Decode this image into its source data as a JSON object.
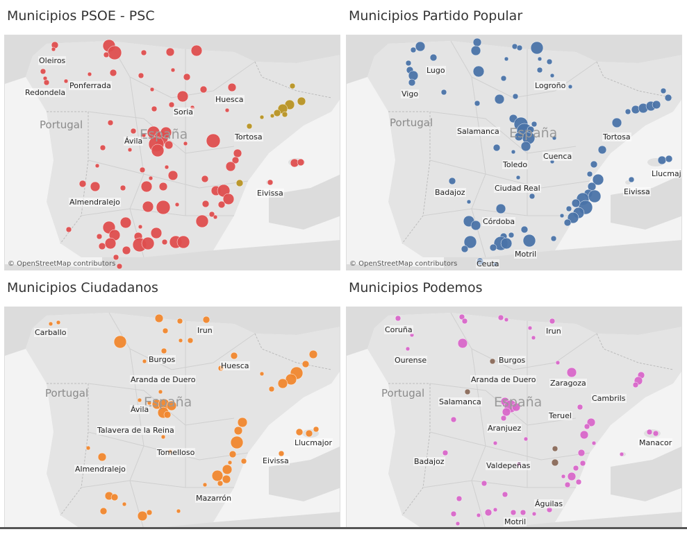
{
  "panels": [
    {
      "title": "Municipios PSOE - PSC",
      "country_labels": [
        "Portugal",
        "España"
      ],
      "attribution": "© OpenStreetMap contributors",
      "colors": {
        "primary": "#de4e4e",
        "secondary": "#b89424"
      },
      "cities": [
        "Oleiros",
        "Redondela",
        "Ponferrada",
        "Huesca",
        "Soria",
        "Ávila",
        "Tortosa",
        "Eivissa",
        "Almendralejo"
      ]
    },
    {
      "title": "Municipios Partido Popular",
      "country_labels": [
        "Portugal",
        "España"
      ],
      "attribution": "© OpenStreetMap contributors",
      "colors": {
        "primary": "#4a73a8"
      },
      "cities": [
        "Lugo",
        "Vigo",
        "Logroño",
        "Salamanca",
        "Tortosa",
        "Cuenca",
        "Toledo",
        "Llucmaj",
        "Badajoz",
        "Ciudad Real",
        "Eivissa",
        "Córdoba",
        "Motril",
        "Ceuta"
      ]
    },
    {
      "title": "Municipios Ciudadanos",
      "country_labels": [
        "Portugal",
        "España"
      ],
      "colors": {
        "primary": "#f0872e"
      },
      "cities": [
        "Carballo",
        "Irun",
        "Burgos",
        "Huesca",
        "Aranda de Duero",
        "Ávila",
        "Talavera de la Reina",
        "Llucmajor",
        "Tomelloso",
        "Eivissa",
        "Almendralejo",
        "Mazarrón"
      ]
    },
    {
      "title": "Municipios Podemos",
      "country_labels": [
        "Portugal",
        "España"
      ],
      "colors": {
        "primary": "#d867c9",
        "secondary": "#8a6a5a"
      },
      "cities": [
        "Coruña",
        "Irun",
        "Ourense",
        "Burgos",
        "Aranda de Duero",
        "Zaragoza",
        "Salamanca",
        "Cambrils",
        "Teruel",
        "Aranjuez",
        "Manacor",
        "Badajoz",
        "Valdepeñas",
        "Águilas",
        "Motril"
      ]
    }
  ]
}
